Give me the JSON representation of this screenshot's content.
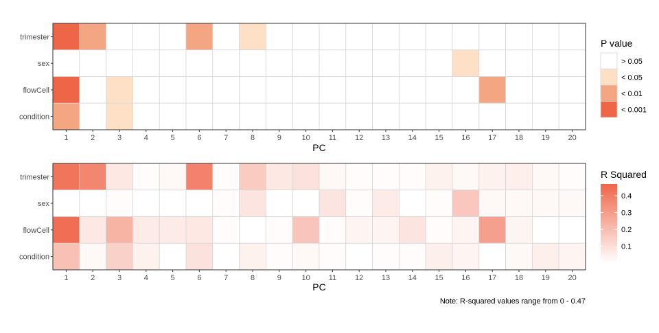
{
  "chart_data": [
    {
      "type": "heatmap",
      "title": "",
      "xlabel": "PC",
      "ylabel": "",
      "x_categories": [
        "1",
        "2",
        "3",
        "4",
        "5",
        "6",
        "7",
        "8",
        "9",
        "10",
        "11",
        "12",
        "13",
        "14",
        "15",
        "16",
        "17",
        "18",
        "19",
        "20"
      ],
      "y_categories": [
        "trimester",
        "sex",
        "flowCell",
        "condition"
      ],
      "values": [
        [
          3,
          2,
          0,
          0,
          0,
          2,
          0,
          1,
          0,
          0,
          0,
          0,
          0,
          0,
          0,
          0,
          0,
          0,
          0,
          0
        ],
        [
          0,
          0,
          0,
          0,
          0,
          0,
          0,
          0,
          0,
          0,
          0,
          0,
          0,
          0,
          0,
          1,
          0,
          0,
          0,
          0
        ],
        [
          3,
          0,
          1,
          0,
          0,
          0,
          0,
          0,
          0,
          0,
          0,
          0,
          0,
          0,
          0,
          0,
          2,
          0,
          0,
          0
        ],
        [
          2,
          0,
          1,
          0,
          0,
          0,
          0,
          0,
          0,
          0,
          0,
          0,
          0,
          0,
          0,
          0,
          0,
          0,
          0,
          0
        ]
      ],
      "legend": {
        "title": "P value",
        "levels": [
          "> 0.05",
          "< 0.05",
          "< 0.01",
          "< 0.001"
        ],
        "colors": [
          "#ffffff",
          "#fde0c5",
          "#f4a582",
          "#ef6548"
        ]
      }
    },
    {
      "type": "heatmap",
      "title": "",
      "xlabel": "PC",
      "ylabel": "",
      "x_categories": [
        "1",
        "2",
        "3",
        "4",
        "5",
        "6",
        "7",
        "8",
        "9",
        "10",
        "11",
        "12",
        "13",
        "14",
        "15",
        "16",
        "17",
        "18",
        "19",
        "20"
      ],
      "y_categories": [
        "trimester",
        "sex",
        "flowCell",
        "condition"
      ],
      "values": [
        [
          0.42,
          0.37,
          0.07,
          0.01,
          0.02,
          0.38,
          0.01,
          0.16,
          0.07,
          0.09,
          0.02,
          0.01,
          0.01,
          0.01,
          0.04,
          0.02,
          0.04,
          0.05,
          0.02,
          0.01
        ],
        [
          0.0,
          0.0,
          0.01,
          0.0,
          0.0,
          0.0,
          0.01,
          0.08,
          0.0,
          0.0,
          0.08,
          0.01,
          0.06,
          0.0,
          0.01,
          0.17,
          0.02,
          0.02,
          0.02,
          0.02
        ],
        [
          0.44,
          0.07,
          0.23,
          0.06,
          0.06,
          0.07,
          0.01,
          0.0,
          0.01,
          0.18,
          0.01,
          0.03,
          0.03,
          0.08,
          0.01,
          0.03,
          0.29,
          0.03,
          0.0,
          0.0
        ],
        [
          0.19,
          0.02,
          0.14,
          0.04,
          0.0,
          0.09,
          0.0,
          0.04,
          0.01,
          0.02,
          0.01,
          0.0,
          0.01,
          0.01,
          0.05,
          0.03,
          0.0,
          0.02,
          0.05,
          0.03
        ]
      ],
      "legend": {
        "title": "R Squared",
        "breaks": [
          0.4,
          0.3,
          0.2,
          0.1
        ],
        "break_labels": [
          "0.4",
          "0.3",
          "0.2",
          "0.1"
        ],
        "range": [
          0,
          0.47
        ],
        "low_color": "#ffffff",
        "high_color": "#ef6548"
      },
      "note": "Note: R-squared values range from 0 - 0.47"
    }
  ]
}
